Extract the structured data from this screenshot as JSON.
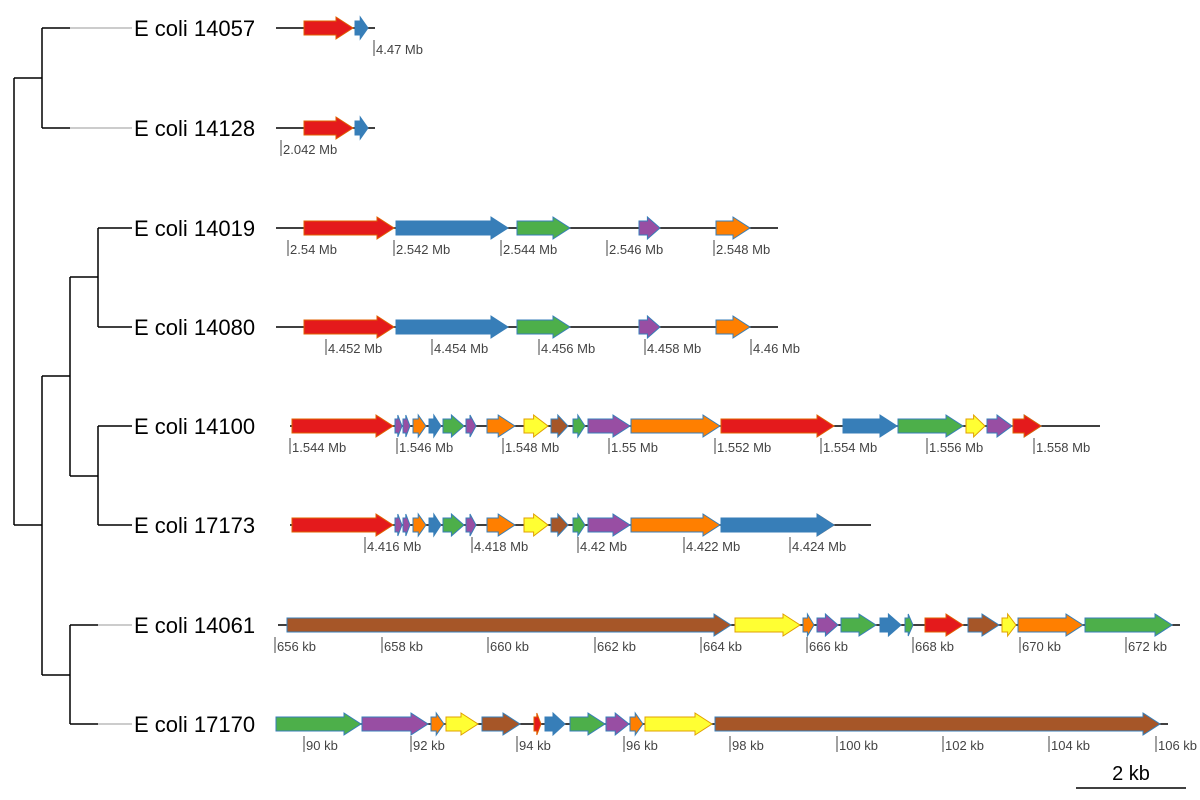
{
  "tracks": [
    {
      "label": "E coli 14057",
      "ticks": [
        "4.47 Mb"
      ],
      "genes": [
        {
          "color": "red"
        },
        {
          "color": "blue"
        }
      ]
    },
    {
      "label": "E coli 14128",
      "ticks": [
        "2.042 Mb"
      ],
      "genes": [
        {
          "color": "red"
        },
        {
          "color": "blue"
        }
      ]
    },
    {
      "label": "E coli 14019",
      "ticks": [
        "2.54 Mb",
        "2.542 Mb",
        "2.544 Mb",
        "2.546 Mb",
        "2.548 Mb"
      ],
      "genes": [
        {
          "color": "red"
        },
        {
          "color": "blue"
        },
        {
          "color": "green"
        },
        {
          "color": "purple"
        },
        {
          "color": "orange"
        }
      ]
    },
    {
      "label": "E coli 14080",
      "ticks": [
        "4.452 Mb",
        "4.454 Mb",
        "4.456 Mb",
        "4.458 Mb",
        "4.46 Mb"
      ],
      "genes": [
        {
          "color": "red"
        },
        {
          "color": "blue"
        },
        {
          "color": "green"
        },
        {
          "color": "purple"
        },
        {
          "color": "orange"
        }
      ]
    },
    {
      "label": "E coli 14100",
      "ticks": [
        "1.544 Mb",
        "1.546 Mb",
        "1.548 Mb",
        "1.55 Mb",
        "1.552 Mb",
        "1.554 Mb",
        "1.556 Mb",
        "1.558 Mb"
      ],
      "genes": [
        {
          "color": "red"
        },
        {
          "color": "purple"
        },
        {
          "color": "purple"
        },
        {
          "color": "orange"
        },
        {
          "color": "blue"
        },
        {
          "color": "green"
        },
        {
          "color": "purple"
        },
        {
          "color": "orange"
        },
        {
          "color": "yellow"
        },
        {
          "color": "brown"
        },
        {
          "color": "green"
        },
        {
          "color": "purple"
        },
        {
          "color": "orange"
        },
        {
          "color": "red"
        },
        {
          "color": "blue"
        },
        {
          "color": "green"
        },
        {
          "color": "yellow"
        },
        {
          "color": "purple"
        },
        {
          "color": "brown"
        },
        {
          "color": "red"
        }
      ]
    },
    {
      "label": "E coli 17173",
      "ticks": [
        "4.416 Mb",
        "4.418 Mb",
        "4.42 Mb",
        "4.422 Mb",
        "4.424 Mb"
      ],
      "genes": [
        {
          "color": "red"
        },
        {
          "color": "purple"
        },
        {
          "color": "purple"
        },
        {
          "color": "orange"
        },
        {
          "color": "blue"
        },
        {
          "color": "green"
        },
        {
          "color": "purple"
        },
        {
          "color": "orange"
        },
        {
          "color": "yellow"
        },
        {
          "color": "brown"
        },
        {
          "color": "green"
        },
        {
          "color": "purple"
        },
        {
          "color": "orange"
        },
        {
          "color": "red"
        },
        {
          "color": "blue"
        }
      ]
    },
    {
      "label": "E coli 14061",
      "ticks": [
        "656 kb",
        "658 kb",
        "660 kb",
        "662 kb",
        "664 kb",
        "666 kb",
        "668 kb",
        "670 kb",
        "672 kb"
      ],
      "genes": [
        {
          "color": "brown"
        },
        {
          "color": "yellow"
        },
        {
          "color": "orange"
        },
        {
          "color": "purple"
        },
        {
          "color": "green"
        },
        {
          "color": "blue"
        },
        {
          "color": "green"
        },
        {
          "color": "red"
        },
        {
          "color": "brown"
        },
        {
          "color": "yellow"
        },
        {
          "color": "orange"
        },
        {
          "color": "purple"
        },
        {
          "color": "green"
        }
      ]
    },
    {
      "label": "E coli 17170",
      "ticks": [
        "90 kb",
        "92 kb",
        "94 kb",
        "96 kb",
        "98 kb",
        "100 kb",
        "102 kb",
        "104 kb",
        "106 kb"
      ],
      "genes": [
        {
          "color": "green"
        },
        {
          "color": "purple"
        },
        {
          "color": "orange"
        },
        {
          "color": "yellow"
        },
        {
          "color": "brown"
        },
        {
          "color": "red"
        },
        {
          "color": "blue"
        },
        {
          "color": "green"
        },
        {
          "color": "purple"
        },
        {
          "color": "orange"
        },
        {
          "color": "yellow"
        },
        {
          "color": "brown"
        }
      ]
    }
  ],
  "scale_bar": {
    "label": "2 kb"
  },
  "colors": {
    "red": "#e41a1c",
    "blue": "#377eb8",
    "green": "#4daf4a",
    "purple": "#984ea3",
    "orange": "#ff7f00",
    "yellow": "#ffff33",
    "brown": "#a65628"
  }
}
